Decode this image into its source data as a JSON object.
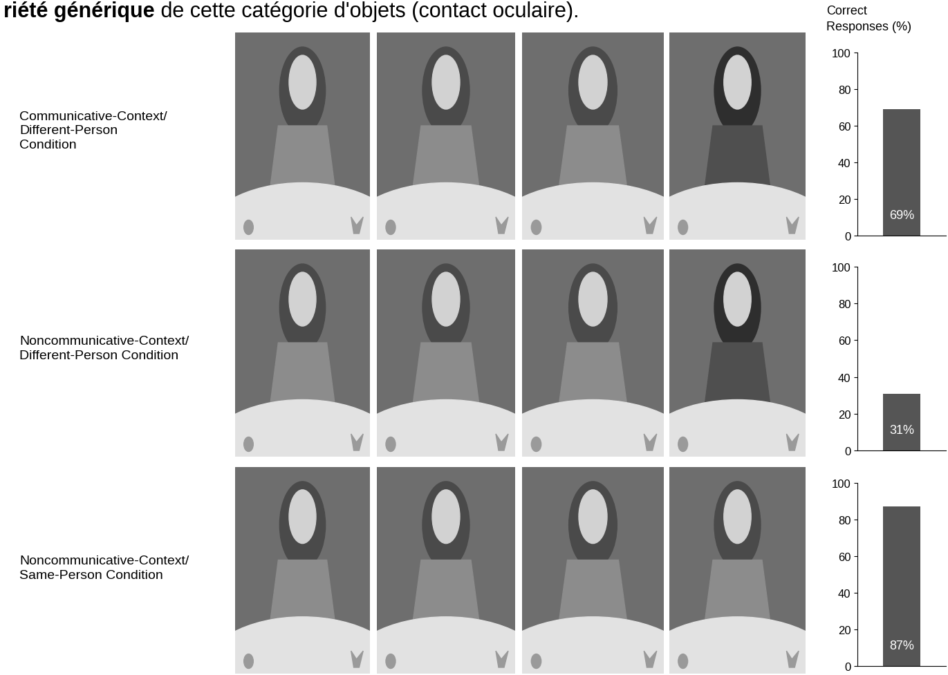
{
  "header": {
    "bold": "riété générique",
    "text": " de cette catégorie d'objets (contact oculaire)."
  },
  "chart_data": [
    {
      "type": "bar",
      "title": "Communicative-Context/\nDifferent-Person\nCondition",
      "ylabel": "Correct\nResponses (%)",
      "categories": [
        null
      ],
      "values": [
        69
      ],
      "value_labels": [
        "69%"
      ],
      "color": "#555555",
      "ylim": [
        0,
        100
      ],
      "yticks": [
        0,
        20,
        40,
        60,
        80,
        100
      ],
      "data_labels": true,
      "tick_labels": "y"
    },
    {
      "type": "bar",
      "title": "Noncommunicative-Context/\nDifferent-Person Condition",
      "categories": [
        null
      ],
      "values": [
        31
      ],
      "value_labels": [
        "31%"
      ],
      "color": "#555555",
      "ylim": [
        0,
        100
      ],
      "yticks": [
        0,
        20,
        40,
        60,
        80,
        100
      ],
      "data_labels": true,
      "tick_labels": "y"
    },
    {
      "type": "bar",
      "title": "Noncommunicative-Context/\nSame-Person Condition",
      "categories": [
        null
      ],
      "values": [
        87
      ],
      "value_labels": [
        "87%"
      ],
      "color": "#555555",
      "ylim": [
        0,
        100
      ],
      "yticks": [
        0,
        20,
        40,
        60,
        80,
        100
      ],
      "data_labels": true,
      "tick_labels": "y"
    }
  ]
}
